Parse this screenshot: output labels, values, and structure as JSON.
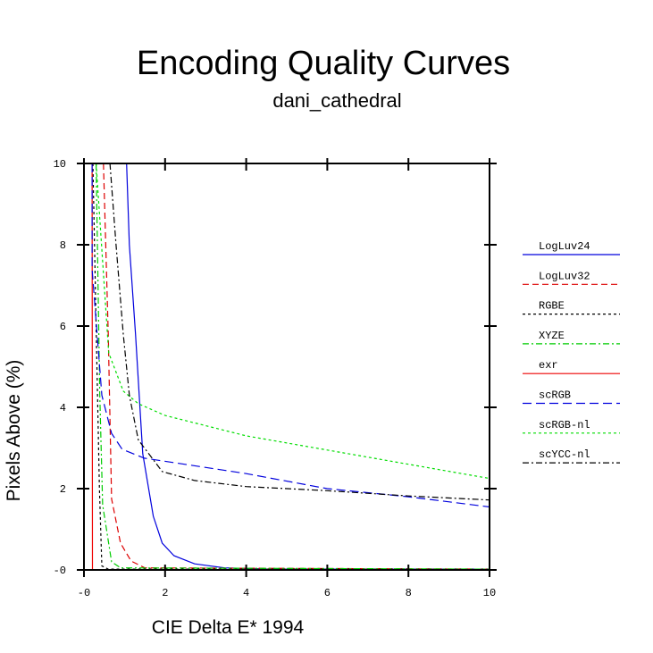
{
  "chart_data": {
    "type": "line",
    "title": "Encoding Quality Curves",
    "subtitle": "dani_cathedral",
    "xlabel": "CIE Delta E* 1994",
    "ylabel": "Pixels Above (%)",
    "xlim": [
      0,
      10
    ],
    "ylim": [
      0,
      10
    ],
    "xticks": [
      0,
      2,
      4,
      6,
      8,
      10
    ],
    "xtick_labels": [
      "-0",
      "2",
      "4",
      "6",
      "8",
      "10"
    ],
    "yticks": [
      0,
      2,
      4,
      6,
      8,
      10
    ],
    "ytick_labels": [
      "-0",
      "2",
      "4",
      "6",
      "8",
      "10"
    ],
    "grid": false,
    "legend_position": "right",
    "series": [
      {
        "name": "LogLuv24",
        "color": "#0000dd",
        "dash": "solid",
        "x": [
          1.05,
          1.12,
          1.27,
          1.45,
          1.71,
          1.93,
          2.22,
          2.73,
          3.47,
          4.5,
          10
        ],
        "y": [
          10,
          8.0,
          5.8,
          2.86,
          1.32,
          0.66,
          0.35,
          0.15,
          0.05,
          0.02,
          0.02
        ]
      },
      {
        "name": "LogLuv32",
        "color": "#dd0000",
        "dash": "dashed",
        "x": [
          0.48,
          0.6,
          0.68,
          0.9,
          1.16,
          1.5,
          10
        ],
        "y": [
          10,
          5.8,
          1.75,
          0.66,
          0.22,
          0.05,
          0.02
        ]
      },
      {
        "name": "RGBE",
        "color": "#000000",
        "dash": "short-dash",
        "x": [
          0.22,
          0.3,
          0.38,
          0.44,
          0.6,
          10
        ],
        "y": [
          10,
          6,
          2,
          0.1,
          0.02,
          0.02
        ]
      },
      {
        "name": "XYZE",
        "color": "#00cc00",
        "dash": "dash-dot",
        "x": [
          0.3,
          0.39,
          0.46,
          0.68,
          0.9,
          10
        ],
        "y": [
          10,
          4.3,
          1.6,
          0.2,
          0.05,
          0.02
        ]
      },
      {
        "name": "exr",
        "color": "#ee0000",
        "dash": "solid",
        "x": [
          0.2,
          0.21,
          10
        ],
        "y": [
          10,
          0,
          0
        ]
      },
      {
        "name": "scRGB",
        "color": "#0000dd",
        "dash": "long-dash",
        "x": [
          0.2,
          0.2,
          0.44,
          0.68,
          0.94,
          1.49,
          4,
          6,
          8,
          10
        ],
        "y": [
          10,
          7.4,
          4.3,
          3.36,
          2.97,
          2.75,
          2.37,
          2.0,
          1.8,
          1.55
        ]
      },
      {
        "name": "scRGB-nl",
        "color": "#00dd00",
        "dash": "short-dash",
        "x": [
          0.3,
          0.61,
          0.97,
          1.34,
          2,
          4,
          6,
          8,
          10
        ],
        "y": [
          10,
          5.34,
          4.4,
          4.09,
          3.8,
          3.3,
          2.95,
          2.6,
          2.25
        ]
      },
      {
        "name": "scYCC-nl",
        "color": "#000000",
        "dash": "dash-dot",
        "x": [
          0.64,
          0.79,
          0.97,
          1.12,
          1.34,
          1.93,
          2.73,
          4,
          6,
          8,
          10
        ],
        "y": [
          10,
          8.0,
          5.8,
          4.3,
          3.2,
          2.42,
          2.2,
          2.05,
          1.95,
          1.82,
          1.72
        ]
      }
    ]
  }
}
